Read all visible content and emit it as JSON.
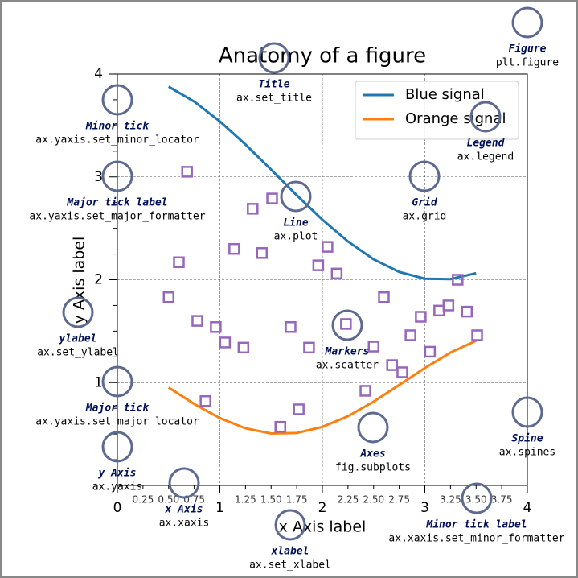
{
  "chart_data": {
    "type": "line",
    "title": "Anatomy of a figure",
    "x_label": "x Axis label",
    "y_label": "y Axis label",
    "xlim": [
      0,
      4
    ],
    "ylim": [
      0,
      4
    ],
    "xticks": [
      0,
      1,
      2,
      3,
      4
    ],
    "yticks": [
      1,
      2,
      3,
      4
    ],
    "xminorticks": [
      {
        "value": 0.25,
        "label": "0.25"
      },
      {
        "value": 0.5,
        "label": "0.50"
      },
      {
        "value": 0.75,
        "label": "0.75"
      },
      {
        "value": 1.25,
        "label": "1.25"
      },
      {
        "value": 1.5,
        "label": "1.50"
      },
      {
        "value": 1.75,
        "label": "1.75"
      },
      {
        "value": 2.25,
        "label": "2.25"
      },
      {
        "value": 2.5,
        "label": "2.50"
      },
      {
        "value": 2.75,
        "label": "2.75"
      },
      {
        "value": 3.25,
        "label": "3.25"
      },
      {
        "value": 3.5,
        "label": "3.50"
      },
      {
        "value": 3.75,
        "label": "3.75"
      }
    ],
    "yminorticks": [
      0.25,
      0.5,
      0.75,
      1.25,
      1.5,
      1.75,
      2.25,
      2.5,
      2.75,
      3.25,
      3.5,
      3.75
    ],
    "grid": true,
    "legend_loc": "upper right",
    "x": [
      0.5,
      0.75,
      1.0,
      1.25,
      1.5,
      1.75,
      2.0,
      2.25,
      2.5,
      2.75,
      3.0,
      3.25,
      3.5
    ],
    "series": [
      {
        "name": "Blue signal",
        "color": "#1f77b4",
        "values": [
          3.878,
          3.732,
          3.54,
          3.315,
          3.071,
          2.822,
          2.584,
          2.372,
          2.199,
          2.076,
          2.01,
          2.006,
          2.064
        ]
      },
      {
        "name": "Orange signal",
        "color": "#ff7f0e",
        "values": [
          0.952,
          0.792,
          0.654,
          0.555,
          0.505,
          0.51,
          0.569,
          0.673,
          0.815,
          0.977,
          1.142,
          1.292,
          1.407
        ]
      }
    ],
    "scatter": {
      "color": "#9467bd",
      "x": [
        0.68,
        0.6,
        0.5,
        0.78,
        0.86,
        0.96,
        1.05,
        1.23,
        1.14,
        1.32,
        1.41,
        1.51,
        1.59,
        1.69,
        1.77,
        1.87,
        1.96,
        2.05,
        2.14,
        2.23,
        2.42,
        2.5,
        2.6,
        2.68,
        2.78,
        2.86,
        2.96,
        3.05,
        3.14,
        3.23,
        3.32,
        3.41,
        3.51
      ],
      "values": [
        3.05,
        2.17,
        1.83,
        1.6,
        0.82,
        1.54,
        1.39,
        1.34,
        2.3,
        2.69,
        2.26,
        2.79,
        0.57,
        1.54,
        0.74,
        1.34,
        2.14,
        2.32,
        2.06,
        1.57,
        0.92,
        1.35,
        1.83,
        1.17,
        1.1,
        1.46,
        1.64,
        1.3,
        1.7,
        1.75,
        2.0,
        1.69,
        1.46
      ]
    }
  },
  "annotations": [
    {
      "label": "Figure",
      "code": "plt.figure"
    },
    {
      "label": "Title",
      "code": "ax.set_title"
    },
    {
      "label": "Minor tick",
      "code": "ax.yaxis.set_minor_locator"
    },
    {
      "label": "Major tick label",
      "code": "ax.yaxis.set_major_formatter"
    },
    {
      "label": "Line",
      "code": "ax.plot"
    },
    {
      "label": "Grid",
      "code": "ax.grid"
    },
    {
      "label": "Legend",
      "code": "ax.legend"
    },
    {
      "label": "ylabel",
      "code": "ax.set_ylabel"
    },
    {
      "label": "Markers",
      "code": "ax.scatter"
    },
    {
      "label": "Major tick",
      "code": "ax.yaxis.set_major_locator"
    },
    {
      "label": "Spine",
      "code": "ax.spines"
    },
    {
      "label": "Axes",
      "code": "fig.subplots"
    },
    {
      "label": "y Axis",
      "code": "ax.yaxis"
    },
    {
      "label": "x Axis",
      "code": "ax.xaxis"
    },
    {
      "label": "xlabel",
      "code": "ax.set_xlabel"
    },
    {
      "label": "Minor tick label",
      "code": "ax.xaxis.set_minor_formatter"
    }
  ]
}
